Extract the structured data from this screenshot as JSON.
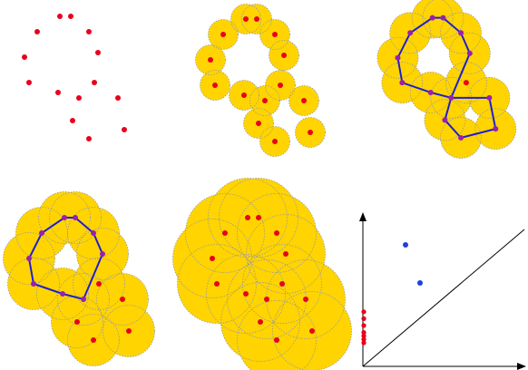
{
  "colors": {
    "background": "#ffffff",
    "point": "#e8001c",
    "ball_fill": "#ffd400",
    "ball_outline": "#9a9a9a",
    "edge": "#1f1fd0",
    "vertex": "#9a1fb0",
    "diagram_h1_point": "#1f3fe0",
    "diagram_h0_point": "#e8001c",
    "axis": "#000000"
  },
  "points": [
    [
      66,
      18
    ],
    [
      78,
      18
    ],
    [
      41,
      35
    ],
    [
      98,
      35
    ],
    [
      108,
      58
    ],
    [
      27,
      63
    ],
    [
      32,
      91
    ],
    [
      104,
      91
    ],
    [
      64,
      102
    ],
    [
      87,
      108
    ],
    [
      130,
      108
    ],
    [
      80,
      133
    ],
    [
      137,
      143
    ],
    [
      98,
      153
    ]
  ],
  "panels": [
    {
      "name": "panel-points",
      "radius_factor": 0,
      "show_edges": false
    },
    {
      "name": "panel-small-balls",
      "radius_factor": 1.1,
      "show_edges": false
    },
    {
      "name": "panel-loops-forming",
      "radius_factor": 1.5,
      "show_edges": true
    },
    {
      "name": "panel-single-loop",
      "radius_factor": 1.9,
      "show_edges": true
    },
    {
      "name": "panel-large-balls",
      "radius_factor": 2.9,
      "show_edges": false
    }
  ],
  "icons": {
    "y_arrow": "arrow-up-icon",
    "x_arrow": "arrow-right-icon"
  },
  "persistence_diagram": {
    "h0_deaths": [
      0.12,
      0.13,
      0.14,
      0.15,
      0.17,
      0.19,
      0.21
    ],
    "h1_points": [
      [
        0.35,
        1.05
      ],
      [
        0.45,
        0.7
      ]
    ]
  }
}
